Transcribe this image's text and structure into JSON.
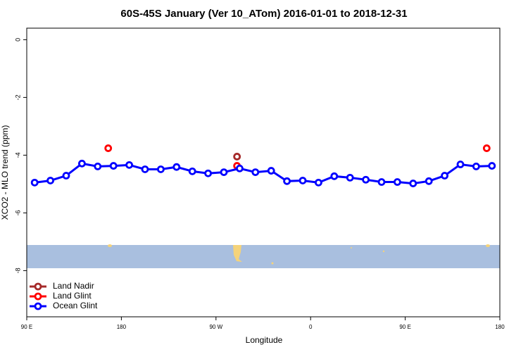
{
  "chart_data": {
    "type": "line",
    "title": "60S-45S January (Ver 10_ATom)   2016-01-01 to 2018-12-31",
    "x_label": "Longitude",
    "y_label": "XCO2 - MLO trend (ppm)",
    "xlim": [
      90,
      540
    ],
    "xticks": [
      {
        "value": 90,
        "label": "90 E"
      },
      {
        "value": 180,
        "label": "180"
      },
      {
        "value": 270,
        "label": "90 W"
      },
      {
        "value": 360,
        "label": "0"
      },
      {
        "value": 450,
        "label": "90 E"
      },
      {
        "value": 540,
        "label": "180"
      }
    ],
    "ylim": [
      -9.6,
      0.4
    ],
    "yticks": [
      0,
      -2,
      -4,
      -6,
      -8
    ],
    "legend": "bottom-left",
    "series": [
      {
        "name": "Land Nadir",
        "color": "#a52a2a",
        "x": [
          290
        ],
        "values": [
          -4.05
        ]
      },
      {
        "name": "Land Glint",
        "color": "#ff0000",
        "x": [
          167.5,
          290,
          527.5
        ],
        "values": [
          -3.76,
          -4.37,
          -3.76
        ]
      },
      {
        "name": "Ocean Glint",
        "color": "#0000ff",
        "x": [
          97.5,
          112.5,
          127.5,
          142.5,
          157.5,
          172.5,
          187.5,
          202.5,
          217.5,
          232.5,
          247.5,
          262.5,
          277.5,
          292.5,
          307.5,
          322.5,
          337.5,
          352.5,
          367.5,
          382.5,
          397.5,
          412.5,
          427.5,
          442.5,
          457.5,
          472.5,
          487.5,
          502.5,
          517.5,
          532.5
        ],
        "values": [
          -4.95,
          -4.88,
          -4.71,
          -4.29,
          -4.39,
          -4.37,
          -4.34,
          -4.49,
          -4.49,
          -4.41,
          -4.56,
          -4.63,
          -4.59,
          -4.46,
          -4.59,
          -4.54,
          -4.9,
          -4.88,
          -4.95,
          -4.73,
          -4.78,
          -4.85,
          -4.93,
          -4.93,
          -4.98,
          -4.9,
          -4.71,
          -4.32,
          -4.39,
          -4.37
        ]
      }
    ]
  }
}
